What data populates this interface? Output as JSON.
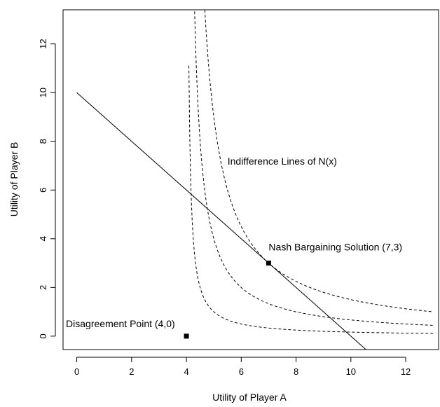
{
  "chart_data": {
    "type": "line",
    "title": "",
    "xlabel": "Utility of Player A",
    "ylabel": "Utility of Player B",
    "xlim": [
      -0.5,
      13.2
    ],
    "ylim": [
      -0.55,
      13.4
    ],
    "xticks": [
      0,
      2,
      4,
      6,
      8,
      10,
      12
    ],
    "yticks": [
      0,
      2,
      4,
      6,
      8,
      10,
      12
    ],
    "grid": false,
    "legend": "none",
    "series": [
      {
        "style": "solid",
        "color": "#000000",
        "x": [
          0,
          10.6
        ],
        "y": [
          10,
          -0.6
        ]
      },
      {
        "style": "dashed",
        "color": "#000000",
        "curve": "(x - 4) * y = 1",
        "x_range": [
          4.09,
          13
        ]
      },
      {
        "style": "dashed",
        "color": "#000000",
        "curve": "(x - 4) * y = 4",
        "x_range": [
          4.3,
          13
        ]
      },
      {
        "style": "dashed",
        "color": "#000000",
        "curve": "(x - 4) * y = 9",
        "x_range": [
          4.6,
          13
        ]
      }
    ],
    "points": [
      {
        "x": 4,
        "y": 0,
        "label": "Disagreement Point (4,0)"
      },
      {
        "x": 7,
        "y": 3,
        "label": "Nash Bargaining Solution (7,3)"
      }
    ],
    "annotations": [
      {
        "text": "Indifference Lines of N(x)",
        "x": 5.5,
        "y": 7.05
      }
    ]
  }
}
